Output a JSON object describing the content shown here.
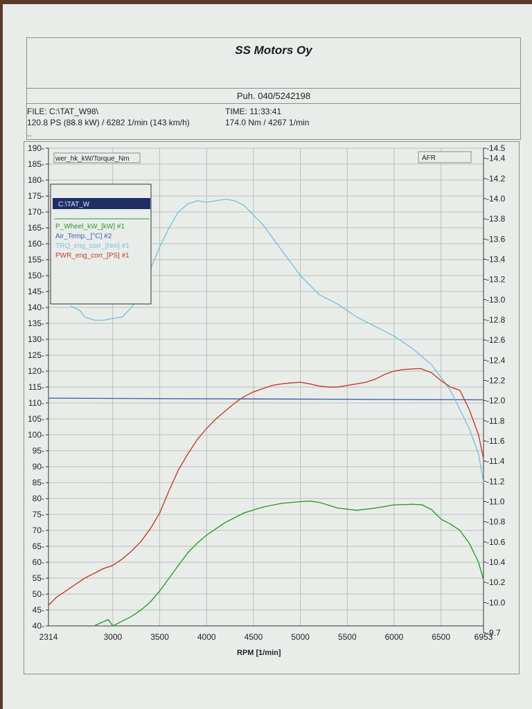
{
  "header": {
    "company": "SS Motors Oy",
    "phone": "Puh. 040/5242198",
    "file": "FILE: C:\\TAT_W98\\",
    "power": "120.8 PS  (88.8 kW) / 6282 1/min (143 km/h)",
    "extra": "..",
    "time": "TIME: 11:33:41",
    "torque": "174.0 Nm / 4267 1/min"
  },
  "chart_data": {
    "type": "line",
    "xlabel": "RPM  [1/min]",
    "ylabel_left": "wer_hk_kW/Torque_Nm",
    "ylabel_right": "AFR",
    "legend_file": "C:\\TAT_W",
    "x_ticks": [
      2314,
      3000,
      3500,
      4000,
      4500,
      5000,
      5500,
      6000,
      6500,
      6953
    ],
    "xlim": [
      2314,
      6953
    ],
    "ylim_left": [
      40,
      190
    ],
    "y_ticks_left": [
      40,
      45,
      50,
      55,
      60,
      65,
      70,
      75,
      80,
      85,
      90,
      95,
      100,
      105,
      110,
      115,
      120,
      125,
      130,
      135,
      140,
      145,
      150,
      155,
      160,
      165,
      170,
      175,
      180,
      185,
      190
    ],
    "ylim_right": [
      9.7,
      14.5
    ],
    "y_ticks_right": [
      9.7,
      10.0,
      10.2,
      10.4,
      10.6,
      10.8,
      11.0,
      11.2,
      11.4,
      11.6,
      11.8,
      12.0,
      12.2,
      12.4,
      12.6,
      12.8,
      13.0,
      13.2,
      13.4,
      13.6,
      13.8,
      14.0,
      14.2,
      14.4,
      14.5
    ],
    "grid": true,
    "series": [
      {
        "name": "P_Wheel_kW_[kW] #1",
        "color": "#2e9a2e",
        "x": [
          2800,
          2950,
          3000,
          3100,
          3200,
          3300,
          3400,
          3500,
          3600,
          3700,
          3800,
          3900,
          4000,
          4200,
          4400,
          4600,
          4800,
          5000,
          5100,
          5200,
          5400,
          5600,
          5800,
          6000,
          6200,
          6300,
          6400,
          6500,
          6600,
          6700,
          6800,
          6900,
          6953
        ],
        "y": [
          40.0,
          42.0,
          40.0,
          41.5,
          43.0,
          45.0,
          47.5,
          51.0,
          55.0,
          59.0,
          63.0,
          66.0,
          68.5,
          72.5,
          75.5,
          77.3,
          78.5,
          79.0,
          79.2,
          78.8,
          77.0,
          76.3,
          77.0,
          78.0,
          78.2,
          78.0,
          76.5,
          73.5,
          72.0,
          70.0,
          66.0,
          60.0,
          54.5
        ]
      },
      {
        "name": "Air_Temp._[°C] #2",
        "color": "#3c63b8",
        "x": [
          2314,
          6953
        ],
        "y": [
          111.5,
          111.0
        ]
      },
      {
        "name": "TRQ_eng_corr_[Nm] #1",
        "color": "#7cc0dc",
        "x": [
          2550,
          2650,
          2700,
          2800,
          2900,
          3000,
          3100,
          3200,
          3300,
          3400,
          3500,
          3600,
          3700,
          3800,
          3900,
          4000,
          4100,
          4200,
          4300,
          4400,
          4500,
          4600,
          4700,
          4800,
          4900,
          5000,
          5200,
          5400,
          5600,
          5800,
          6000,
          6200,
          6400,
          6500,
          6600,
          6700,
          6800,
          6900,
          6953
        ],
        "y": [
          140.5,
          139.0,
          137.0,
          136.0,
          136.0,
          136.5,
          137.0,
          140.0,
          145.0,
          152.0,
          159.0,
          165.0,
          170.0,
          172.5,
          173.5,
          173.0,
          173.5,
          174.0,
          173.5,
          172.0,
          169.0,
          166.0,
          162.0,
          158.0,
          154.0,
          150.0,
          144.0,
          141.0,
          137.0,
          134.0,
          131.0,
          127.0,
          122.0,
          118.0,
          114.0,
          108.0,
          102.0,
          94.0,
          85.0
        ]
      },
      {
        "name": "PWR_eng_corr_[PS] #1",
        "color": "#c8392a",
        "x": [
          2314,
          2400,
          2500,
          2600,
          2700,
          2800,
          2900,
          3000,
          3100,
          3200,
          3300,
          3400,
          3500,
          3600,
          3700,
          3800,
          3900,
          4000,
          4100,
          4200,
          4300,
          4400,
          4500,
          4600,
          4700,
          4800,
          4900,
          5000,
          5100,
          5200,
          5300,
          5400,
          5500,
          5600,
          5700,
          5800,
          5900,
          6000,
          6100,
          6200,
          6282,
          6400,
          6500,
          6600,
          6700,
          6800,
          6900,
          6953
        ],
        "y": [
          46.5,
          49.0,
          51.0,
          53.0,
          55.0,
          56.5,
          58.0,
          59.0,
          61.0,
          63.5,
          66.5,
          70.5,
          75.5,
          82.5,
          89.0,
          94.0,
          98.5,
          102.0,
          105.0,
          107.5,
          110.0,
          112.0,
          113.5,
          114.5,
          115.5,
          116.0,
          116.3,
          116.5,
          116.0,
          115.3,
          115.0,
          115.0,
          115.5,
          116.0,
          116.5,
          117.5,
          119.0,
          120.0,
          120.5,
          120.7,
          120.8,
          119.5,
          117.0,
          115.0,
          114.0,
          108.0,
          100.0,
          92.5
        ]
      }
    ]
  }
}
